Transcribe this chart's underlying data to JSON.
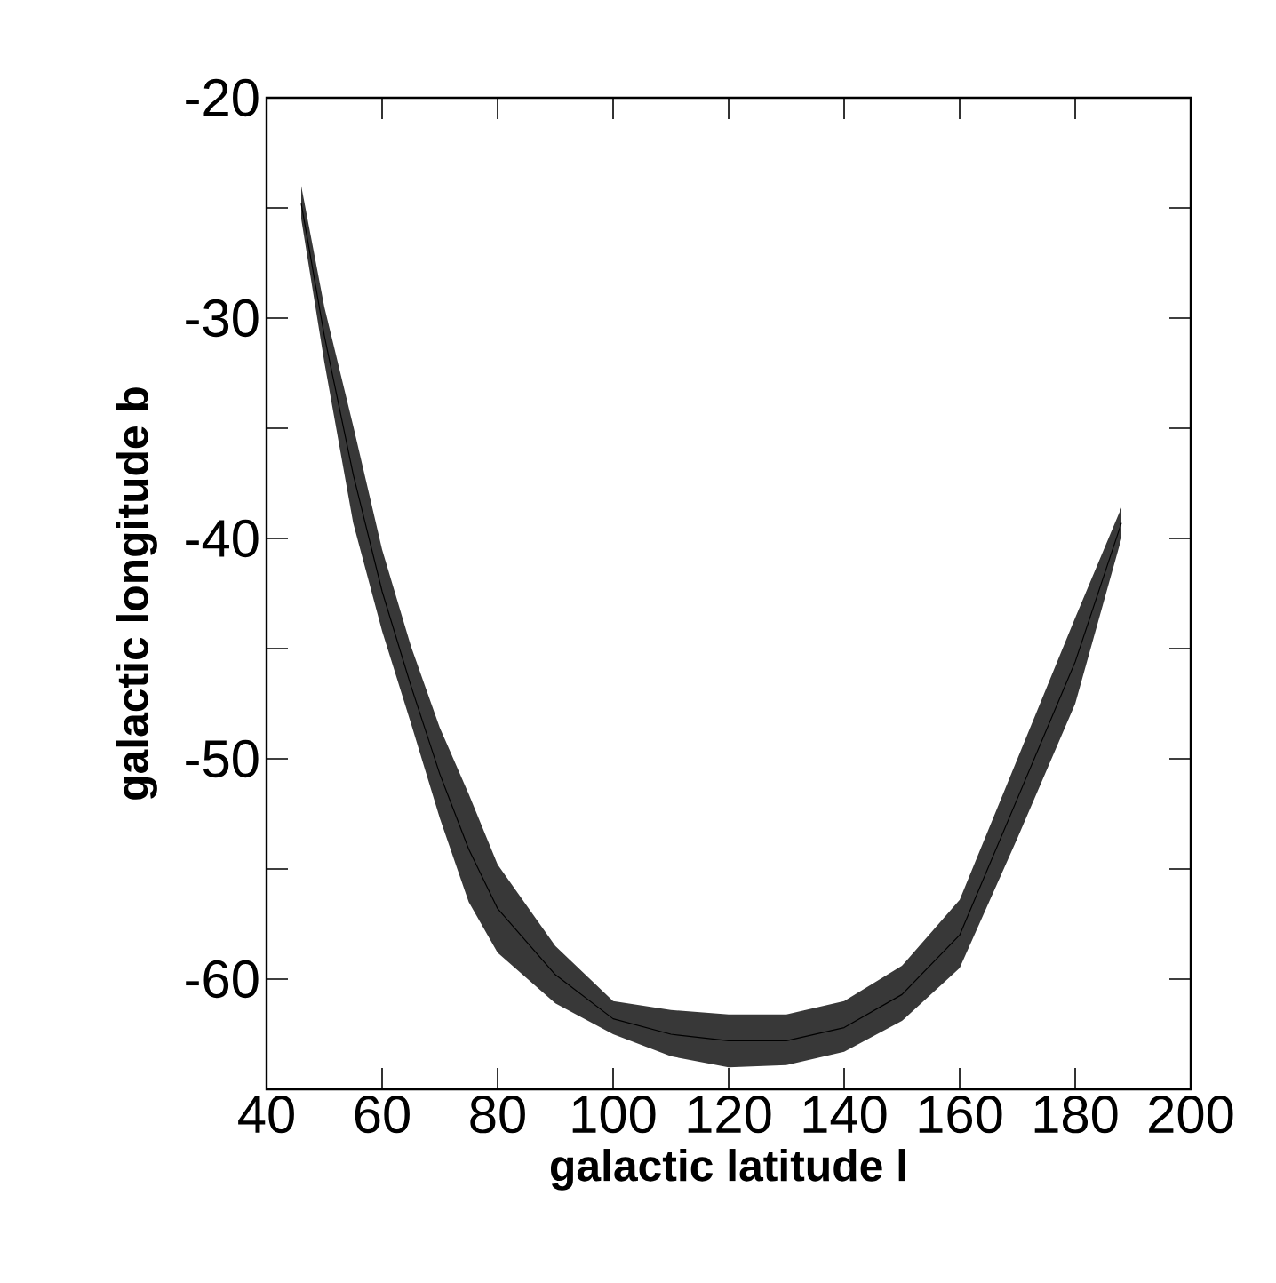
{
  "chart_data": {
    "type": "line",
    "xlabel": "galactic latitude l",
    "ylabel": "galactic longitude b",
    "xlim": [
      40,
      200
    ],
    "ylim": [
      -65,
      -20
    ],
    "xticks": [
      40,
      60,
      80,
      100,
      120,
      140,
      160,
      180,
      200
    ],
    "yticks": [
      -60,
      {
        "value": -55,
        "label": null
      },
      -50,
      {
        "value": -45,
        "label": null
      },
      -40,
      {
        "value": -35,
        "label": null
      },
      -30,
      {
        "value": -25,
        "label": null
      },
      -20
    ],
    "series": [
      {
        "color": "#000000",
        "x": [
          46,
          50,
          55,
          60,
          65,
          70,
          75,
          80,
          90,
          100,
          110,
          120,
          130,
          140,
          150,
          160,
          170,
          180,
          188
        ],
        "values": [
          -24.8,
          -30.8,
          -37.1,
          -42.4,
          -46.7,
          -50.7,
          -54.1,
          -56.8,
          -59.8,
          -61.8,
          -62.5,
          -62.8,
          -62.8,
          -62.2,
          -60.7,
          -58.0,
          -51.8,
          -45.6,
          -39.3
        ],
        "lower": [
          -25.5,
          -32,
          -39.3,
          -44.2,
          -48.4,
          -52.7,
          -56.5,
          -58.8,
          -61.1,
          -62.5,
          -63.5,
          -64.0,
          -63.9,
          -63.3,
          -61.9,
          -59.5,
          -53.6,
          -47.5,
          -40.0
        ],
        "upper": [
          -24.0,
          -29.5,
          -34.9,
          -40.5,
          -44.9,
          -48.6,
          -51.6,
          -54.8,
          -58.5,
          -61.0,
          -61.4,
          -61.6,
          -61.6,
          -61.0,
          -59.4,
          -56.4,
          -50.0,
          -43.6,
          -38.6
        ]
      }
    ]
  }
}
